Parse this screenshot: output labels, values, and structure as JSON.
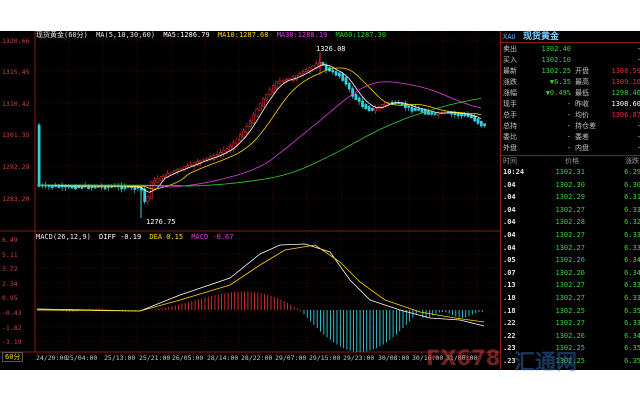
{
  "chart_header": {
    "title": "现货黄金(60分)",
    "ma_label": "MA(5,10,30,60)",
    "ma5": "MA5:1286.79",
    "ma10": "MA10:1287.68",
    "ma30": "MA30:1288.19",
    "ma60": "MA60:1287.30"
  },
  "colors": {
    "up": "#e03030",
    "down": "#30d0e0",
    "ma5": "#ffffff",
    "ma10": "#ffd800",
    "ma30": "#e040e0",
    "ma60": "#30d030",
    "grid": "#7a1010",
    "axis_label": "#d04040"
  },
  "price_axis": [
    "1320.66",
    "1315.45",
    "1310.42",
    "1301.35",
    "1292.29",
    "1283.20"
  ],
  "macd_axis": [
    "6.49",
    "5.11",
    "3.72",
    "2.34",
    "0.95",
    "-0.43",
    "-1.82",
    "-3.19"
  ],
  "time_axis": [
    "24/20:00",
    "25/04:00",
    "25/13:00",
    "25/21:00",
    "26/05:00",
    "28/14:00",
    "28/22:00",
    "29/07:00",
    "29/15:00",
    "29/23:00",
    "30/08:00",
    "30/16:00",
    "31/00:00"
  ],
  "annotations": {
    "high": "1326.08",
    "low": "1276.75"
  },
  "macd_header": {
    "label": "MACD(26,12,9)",
    "diff": "DIFF -0.19",
    "dea": "DEA 0.15",
    "macd": "MACD -0.67"
  },
  "period": "60分",
  "quote": {
    "symbol": "XAU",
    "name": "现货黄金",
    "rows": [
      {
        "l1": "卖出",
        "v1": "1302.40",
        "l2": "",
        "v2": "-"
      },
      {
        "l1": "买入",
        "v1": "1302.10",
        "l2": "",
        "v2": "-"
      },
      {
        "l1": "最新",
        "v1": "1302.25",
        "l2": "开盘",
        "v2": "1308.59"
      },
      {
        "l1": "涨跌",
        "v1": "▼6.35",
        "l2": "最高",
        "v2": "1309.16"
      },
      {
        "l1": "涨幅",
        "v1": "▼0.49%",
        "l2": "最低",
        "v2": "1298.46"
      },
      {
        "l1": "现手",
        "v1": "-",
        "l2": "昨收",
        "v2": "1308.60"
      },
      {
        "l1": "总手",
        "v1": "-",
        "l2": "均价",
        "v2": "1306.87"
      },
      {
        "l1": "总持",
        "v1": "-",
        "l2": "持仓差",
        "v2": "-"
      },
      {
        "l1": "委比",
        "v1": "-",
        "l2": "委差",
        "v2": "-"
      },
      {
        "l1": "外盘",
        "v1": "-",
        "l2": "内盘",
        "v2": "-"
      }
    ],
    "tick_header": {
      "time": "时间",
      "price": "价格",
      "change": "涨跌"
    },
    "ticks": [
      {
        "time": "10:24",
        "price": "1302.31",
        "change": "6.29"
      },
      {
        "time": ".04",
        "price": "1302.30",
        "change": "6.30"
      },
      {
        "time": ".04",
        "price": "1302.29",
        "change": "6.31"
      },
      {
        "time": ".04",
        "price": "1302.27",
        "change": "6.33"
      },
      {
        "time": ".04",
        "price": "1302.28",
        "change": "6.32"
      },
      {
        "time": ".04",
        "price": "1302.27",
        "change": "6.33"
      },
      {
        "time": ".04",
        "price": "1302.27",
        "change": "6.33"
      },
      {
        "time": ".05",
        "price": "1302.26",
        "change": "6.34"
      },
      {
        "time": ".07",
        "price": "1302.26",
        "change": "6.34"
      },
      {
        "time": ".13",
        "price": "1302.27",
        "change": "6.33"
      },
      {
        "time": ".18",
        "price": "1302.27",
        "change": "6.33"
      },
      {
        "time": ".18",
        "price": "1302.25",
        "change": "6.35"
      },
      {
        "time": ".22",
        "price": "1302.27",
        "change": "6.33"
      },
      {
        "time": ".22",
        "price": "1302.26",
        "change": "6.34"
      },
      {
        "time": ".23",
        "price": "1302.25",
        "change": "6.35"
      },
      {
        "time": ".23",
        "price": "1302.25",
        "change": "6.35"
      }
    ]
  },
  "watermark": {
    "brand": "FX678",
    "brand_cn": "汇通网"
  }
}
